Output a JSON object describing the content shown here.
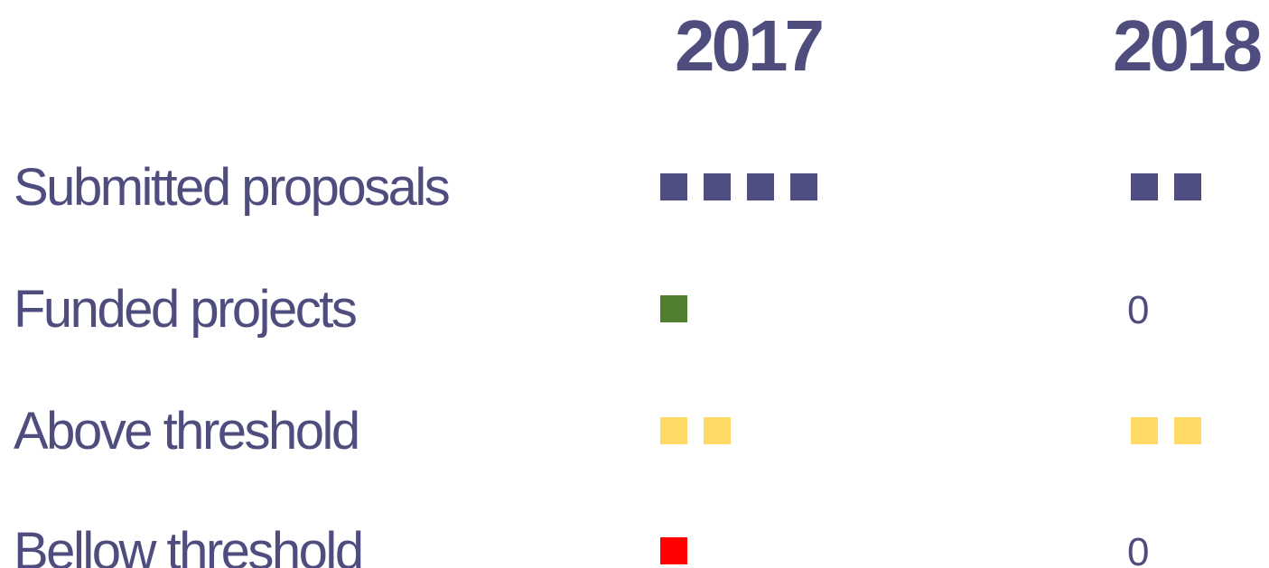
{
  "chart_data": {
    "type": "pictogram",
    "categories": [
      "Submitted proposals",
      "Funded projects",
      "Above threshold",
      "Bellow threshold"
    ],
    "colors": [
      "#4e4f80",
      "#4f7f2f",
      "#ffd966",
      "#ff0000"
    ],
    "series": [
      {
        "name": "2017",
        "values": [
          4,
          1,
          2,
          1
        ]
      },
      {
        "name": "2018",
        "values": [
          2,
          0,
          2,
          0
        ]
      }
    ]
  }
}
